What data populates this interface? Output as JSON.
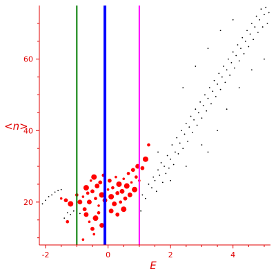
{
  "chart_data": {
    "type": "scatter",
    "title": "",
    "xlabel": "E",
    "ylabel": "<n>",
    "xlim": [
      -2.2,
      5.2
    ],
    "ylim": [
      8,
      75
    ],
    "x_ticks": [
      -2,
      0,
      2,
      4
    ],
    "y_ticks": [
      20,
      40,
      60
    ],
    "x_tick_labels": [
      "-2",
      "0",
      "2",
      "4"
    ],
    "y_tick_labels": [
      "20",
      "40",
      "60"
    ],
    "grid": false,
    "legend": "none",
    "colors": {
      "axis": "#e00000",
      "black_points": "#000000",
      "red_points": "#ff0000",
      "line_green": "#007a00",
      "line_blue": "#0000ff",
      "line_magenta": "#ff00ff"
    },
    "vertical_lines": [
      {
        "x": -1.0,
        "color": "#007a00",
        "emphasis": "normal"
      },
      {
        "x": -0.1,
        "color": "#0000ff",
        "emphasis": "thick"
      },
      {
        "x": 1.0,
        "color": "#ff00ff",
        "emphasis": "normal"
      }
    ],
    "series": [
      {
        "color": "#000000",
        "marker": "dot",
        "points": [
          [
            -2.1,
            19.5
          ],
          [
            -2.0,
            20.5
          ],
          [
            -1.9,
            21.5
          ],
          [
            -1.8,
            22.0
          ],
          [
            -1.7,
            22.8
          ],
          [
            -1.6,
            23.2
          ],
          [
            -1.5,
            23.5
          ],
          [
            -1.4,
            15.5
          ],
          [
            -1.3,
            17.0
          ],
          [
            -1.2,
            16.5
          ],
          [
            -1.1,
            17.5
          ],
          [
            -0.9,
            16.8
          ],
          [
            1.05,
            17.5
          ],
          [
            1.1,
            22.0
          ],
          [
            1.2,
            21.0
          ],
          [
            1.3,
            25.0
          ],
          [
            1.4,
            24.0
          ],
          [
            1.45,
            27.0
          ],
          [
            1.5,
            26.0
          ],
          [
            1.55,
            23.0
          ],
          [
            1.6,
            29.0
          ],
          [
            1.65,
            27.5
          ],
          [
            1.7,
            31.0
          ],
          [
            1.75,
            25.5
          ],
          [
            1.8,
            30.0
          ],
          [
            1.85,
            28.0
          ],
          [
            1.9,
            33.0
          ],
          [
            1.95,
            29.5
          ],
          [
            2.0,
            32.0
          ],
          [
            2.05,
            36.0
          ],
          [
            2.1,
            30.5
          ],
          [
            2.15,
            34.0
          ],
          [
            2.2,
            38.0
          ],
          [
            2.25,
            33.5
          ],
          [
            2.3,
            36.5
          ],
          [
            2.35,
            40.0
          ],
          [
            2.4,
            35.0
          ],
          [
            2.45,
            39.0
          ],
          [
            2.5,
            42.0
          ],
          [
            2.55,
            37.0
          ],
          [
            2.6,
            41.0
          ],
          [
            2.65,
            44.0
          ],
          [
            2.7,
            39.5
          ],
          [
            2.75,
            43.0
          ],
          [
            2.8,
            46.0
          ],
          [
            2.85,
            41.5
          ],
          [
            2.9,
            45.0
          ],
          [
            2.95,
            48.0
          ],
          [
            3.0,
            43.5
          ],
          [
            3.05,
            47.0
          ],
          [
            3.1,
            50.0
          ],
          [
            3.15,
            45.5
          ],
          [
            3.2,
            49.0
          ],
          [
            3.25,
            52.0
          ],
          [
            3.3,
            47.5
          ],
          [
            3.35,
            51.0
          ],
          [
            3.4,
            54.0
          ],
          [
            3.45,
            49.5
          ],
          [
            3.5,
            53.0
          ],
          [
            3.55,
            56.0
          ],
          [
            3.6,
            51.5
          ],
          [
            3.65,
            55.0
          ],
          [
            3.7,
            58.0
          ],
          [
            3.75,
            53.5
          ],
          [
            3.8,
            57.0
          ],
          [
            3.85,
            60.0
          ],
          [
            3.9,
            55.5
          ],
          [
            3.95,
            59.0
          ],
          [
            4.0,
            62.0
          ],
          [
            4.05,
            57.5
          ],
          [
            4.1,
            61.0
          ],
          [
            4.15,
            64.0
          ],
          [
            4.2,
            59.5
          ],
          [
            4.25,
            63.0
          ],
          [
            4.3,
            66.0
          ],
          [
            4.35,
            61.5
          ],
          [
            4.4,
            65.0
          ],
          [
            4.45,
            68.0
          ],
          [
            4.5,
            63.5
          ],
          [
            4.55,
            67.0
          ],
          [
            4.6,
            70.0
          ],
          [
            4.65,
            65.5
          ],
          [
            4.7,
            69.0
          ],
          [
            4.75,
            72.0
          ],
          [
            4.8,
            67.5
          ],
          [
            4.85,
            71.0
          ],
          [
            4.9,
            74.0
          ],
          [
            4.95,
            69.0
          ],
          [
            5.0,
            72.5
          ],
          [
            5.05,
            74.5
          ],
          [
            5.1,
            70.0
          ],
          [
            5.15,
            73.0
          ],
          [
            3.2,
            34.0
          ],
          [
            3.5,
            40.0
          ],
          [
            3.8,
            46.0
          ],
          [
            4.2,
            52.0
          ],
          [
            4.6,
            57.0
          ],
          [
            5.0,
            60.0
          ],
          [
            2.4,
            52.0
          ],
          [
            2.8,
            58.0
          ],
          [
            3.2,
            63.0
          ],
          [
            3.6,
            68.0
          ],
          [
            4.0,
            71.0
          ],
          [
            1.6,
            34.0
          ],
          [
            2.0,
            26.0
          ],
          [
            2.5,
            30.0
          ],
          [
            3.0,
            36.0
          ]
        ]
      },
      {
        "color": "#ff0000",
        "marker": "blob",
        "points": [
          [
            -1.5,
            21.0
          ],
          [
            -1.35,
            20.5
          ],
          [
            -1.2,
            19.5
          ],
          [
            -1.0,
            22.0
          ],
          [
            -0.9,
            20.0
          ],
          [
            -0.8,
            21.5
          ],
          [
            -0.75,
            18.0
          ],
          [
            -0.7,
            24.0
          ],
          [
            -0.65,
            22.5
          ],
          [
            -0.6,
            20.0
          ],
          [
            -0.55,
            26.0
          ],
          [
            -0.5,
            23.0
          ],
          [
            -0.45,
            27.0
          ],
          [
            -0.4,
            21.0
          ],
          [
            -0.35,
            24.5
          ],
          [
            -0.3,
            19.0
          ],
          [
            -0.25,
            25.5
          ],
          [
            -0.2,
            22.0
          ],
          [
            -0.15,
            27.5
          ],
          [
            -0.1,
            20.5
          ],
          [
            0.0,
            23.5
          ],
          [
            0.05,
            26.0
          ],
          [
            0.1,
            21.5
          ],
          [
            0.15,
            24.0
          ],
          [
            0.2,
            19.5
          ],
          [
            0.25,
            27.0
          ],
          [
            0.3,
            22.5
          ],
          [
            0.35,
            25.0
          ],
          [
            0.4,
            20.0
          ],
          [
            0.45,
            23.0
          ],
          [
            0.5,
            26.5
          ],
          [
            0.55,
            21.0
          ],
          [
            0.6,
            24.5
          ],
          [
            0.65,
            28.0
          ],
          [
            0.7,
            22.0
          ],
          [
            0.75,
            25.5
          ],
          [
            0.8,
            29.0
          ],
          [
            0.85,
            23.5
          ],
          [
            0.9,
            27.0
          ],
          [
            0.95,
            30.0
          ],
          [
            1.0,
            26.0
          ],
          [
            1.1,
            29.5
          ],
          [
            1.2,
            32.0
          ],
          [
            1.3,
            36.0
          ],
          [
            -0.7,
            16.5
          ],
          [
            -0.6,
            14.5
          ],
          [
            -0.5,
            12.5
          ],
          [
            -0.4,
            15.5
          ],
          [
            -0.3,
            17.0
          ],
          [
            -0.2,
            13.5
          ],
          [
            -0.8,
            9.5
          ],
          [
            0.3,
            16.5
          ],
          [
            0.5,
            18.0
          ],
          [
            -1.3,
            14.5
          ],
          [
            0.1,
            17.5
          ],
          [
            -0.45,
            11.0
          ]
        ]
      }
    ]
  }
}
